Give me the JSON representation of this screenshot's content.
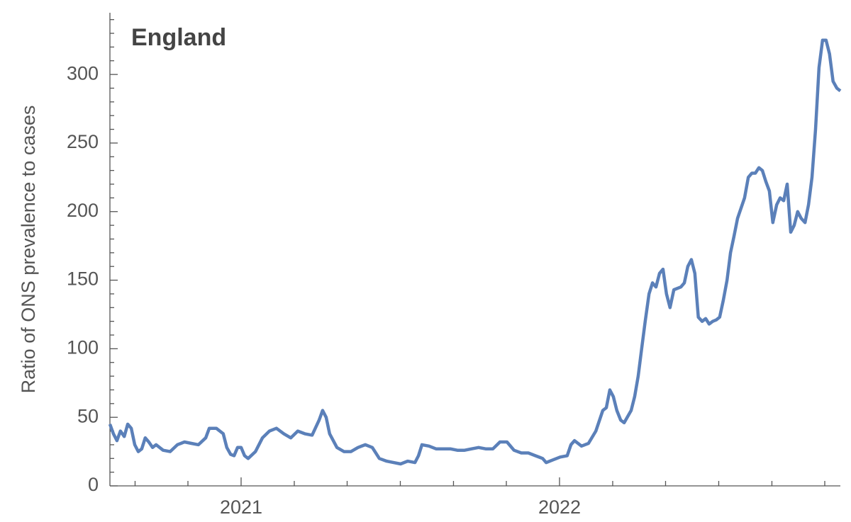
{
  "chart_data": {
    "type": "line",
    "title": "England",
    "y_label": "Ratio of ONS prevalence to cases",
    "x": [
      2020.588,
      2020.599,
      2020.61,
      2020.621,
      2020.633,
      2020.644,
      2020.655,
      2020.666,
      2020.677,
      2020.688,
      2020.699,
      2020.71,
      2020.722,
      2020.733,
      2020.755,
      2020.777,
      2020.8,
      2020.822,
      2020.844,
      2020.866,
      2020.889,
      2020.9,
      2020.922,
      2020.944,
      2020.955,
      2020.967,
      2020.978,
      2020.989,
      2021.0,
      2021.011,
      2021.022,
      2021.045,
      2021.067,
      2021.089,
      2021.111,
      2021.134,
      2021.156,
      2021.178,
      2021.2,
      2021.223,
      2021.245,
      2021.256,
      2021.267,
      2021.278,
      2021.301,
      2021.323,
      2021.345,
      2021.367,
      2021.39,
      2021.412,
      2021.434,
      2021.457,
      2021.479,
      2021.501,
      2021.523,
      2021.546,
      2021.557,
      2021.568,
      2021.59,
      2021.612,
      2021.635,
      2021.657,
      2021.679,
      2021.702,
      2021.724,
      2021.746,
      2021.768,
      2021.791,
      2021.813,
      2021.835,
      2021.857,
      2021.88,
      2021.902,
      2021.924,
      2021.947,
      2021.958,
      2021.98,
      2022.002,
      2022.024,
      2022.036,
      2022.047,
      2022.069,
      2022.091,
      2022.114,
      2022.136,
      2022.147,
      2022.158,
      2022.169,
      2022.18,
      2022.192,
      2022.203,
      2022.225,
      2022.236,
      2022.247,
      2022.258,
      2022.269,
      2022.281,
      2022.292,
      2022.303,
      2022.314,
      2022.325,
      2022.336,
      2022.347,
      2022.359,
      2022.381,
      2022.392,
      2022.403,
      2022.414,
      2022.425,
      2022.436,
      2022.448,
      2022.459,
      2022.47,
      2022.481,
      2022.492,
      2022.503,
      2022.514,
      2022.526,
      2022.537,
      2022.548,
      2022.559,
      2022.581,
      2022.593,
      2022.604,
      2022.615,
      2022.626,
      2022.637,
      2022.648,
      2022.659,
      2022.67,
      2022.682,
      2022.693,
      2022.704,
      2022.715,
      2022.726,
      2022.737,
      2022.748,
      2022.759,
      2022.771,
      2022.782,
      2022.793,
      2022.804,
      2022.815,
      2022.826,
      2022.837,
      2022.848,
      2022.859,
      2022.871,
      2022.882
    ],
    "series": [
      {
        "color": "#5b80b9",
        "values": [
          45,
          38,
          33,
          40,
          36,
          45,
          42,
          30,
          25,
          27,
          35,
          32,
          28,
          30,
          26,
          25,
          30,
          32,
          31,
          30,
          35,
          42,
          42,
          38,
          28,
          23,
          22,
          28,
          28,
          22,
          20,
          25,
          35,
          40,
          42,
          38,
          35,
          40,
          38,
          37,
          48,
          55,
          50,
          38,
          28,
          25,
          25,
          28,
          30,
          28,
          20,
          18,
          17,
          16,
          18,
          17,
          22,
          30,
          29,
          27,
          27,
          27,
          26,
          26,
          27,
          28,
          27,
          27,
          32,
          32,
          26,
          24,
          24,
          22,
          20,
          17,
          19,
          21,
          22,
          30,
          33,
          29,
          31,
          40,
          55,
          57,
          70,
          65,
          55,
          48,
          46,
          55,
          65,
          80,
          100,
          120,
          140,
          148,
          145,
          155,
          158,
          140,
          130,
          143,
          145,
          148,
          160,
          165,
          155,
          123,
          120,
          122,
          118,
          120,
          121,
          123,
          135,
          150,
          170,
          182,
          195,
          210,
          225,
          228,
          228,
          232,
          230,
          222,
          215,
          192,
          205,
          210,
          208,
          220,
          185,
          190,
          200,
          195,
          192,
          205,
          225,
          260,
          305,
          325,
          325,
          315,
          295,
          290,
          288
        ]
      }
    ],
    "xlim": [
      2020.588,
      2022.882
    ],
    "xticks": [
      {
        "value": 2021,
        "label": "2021"
      },
      {
        "value": 2022,
        "label": "2022"
      }
    ],
    "xminor_ticks": [
      2020.667,
      2020.833,
      2021.167,
      2021.333,
      2021.5,
      2021.667,
      2021.833,
      2022.167,
      2022.333,
      2022.5,
      2022.667,
      2022.833
    ],
    "ylim": [
      0,
      345
    ],
    "yticks": [
      0,
      50,
      100,
      150,
      200,
      250,
      300
    ],
    "yminor_ticks": [
      10,
      20,
      30,
      40,
      60,
      70,
      80,
      90,
      110,
      120,
      130,
      140,
      160,
      170,
      180,
      190,
      210,
      220,
      230,
      240,
      260,
      270,
      280,
      290,
      310,
      320,
      330,
      340
    ]
  }
}
